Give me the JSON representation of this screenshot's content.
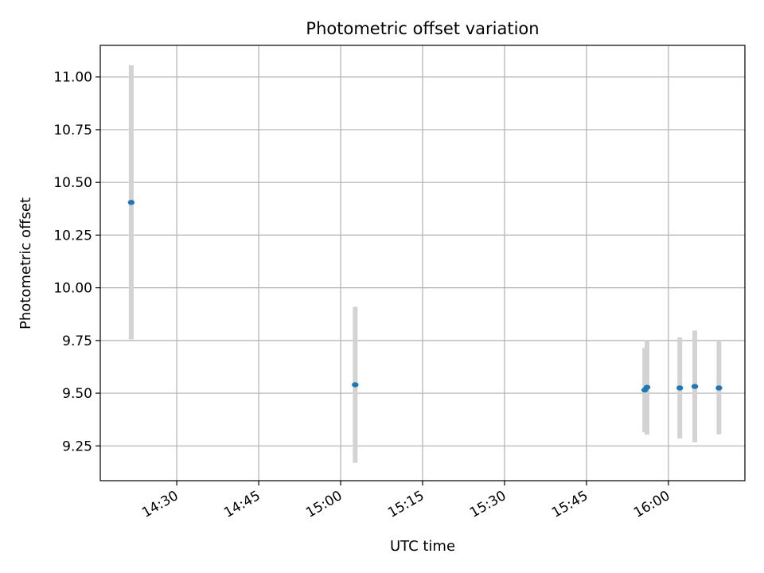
{
  "chart_data": {
    "type": "scatter",
    "title": "Photometric offset variation",
    "xlabel": "UTC time",
    "ylabel": "Photometric offset",
    "x_axis_type": "time",
    "xlim": [
      "14:16",
      "16:14"
    ],
    "ylim": [
      9.085,
      11.15
    ],
    "x_ticks": [
      "14:30",
      "14:45",
      "15:00",
      "15:15",
      "15:30",
      "15:45",
      "16:00"
    ],
    "y_ticks": [
      9.25,
      9.5,
      9.75,
      10.0,
      10.25,
      10.5,
      10.75,
      11.0
    ],
    "y_tick_labels": [
      "9.25",
      "9.50",
      "9.75",
      "10.00",
      "10.25",
      "10.50",
      "10.75",
      "11.00"
    ],
    "grid": true,
    "point_color": "#1f77b4",
    "errorbar_color": "#d3d3d3",
    "points": [
      {
        "x": "14:21:40",
        "y": 10.405,
        "err_low": 9.755,
        "err_high": 11.055
      },
      {
        "x": "15:02:40",
        "y": 9.54,
        "err_low": 9.17,
        "err_high": 9.91
      },
      {
        "x": "15:55:40",
        "y": 9.515,
        "err_low": 9.315,
        "err_high": 9.715
      },
      {
        "x": "15:56:05",
        "y": 9.528,
        "err_low": 9.303,
        "err_high": 9.753
      },
      {
        "x": "16:02:05",
        "y": 9.525,
        "err_low": 9.285,
        "err_high": 9.765
      },
      {
        "x": "16:04:50",
        "y": 9.532,
        "err_low": 9.267,
        "err_high": 9.797
      },
      {
        "x": "16:09:15",
        "y": 9.525,
        "err_low": 9.305,
        "err_high": 9.745
      }
    ]
  }
}
